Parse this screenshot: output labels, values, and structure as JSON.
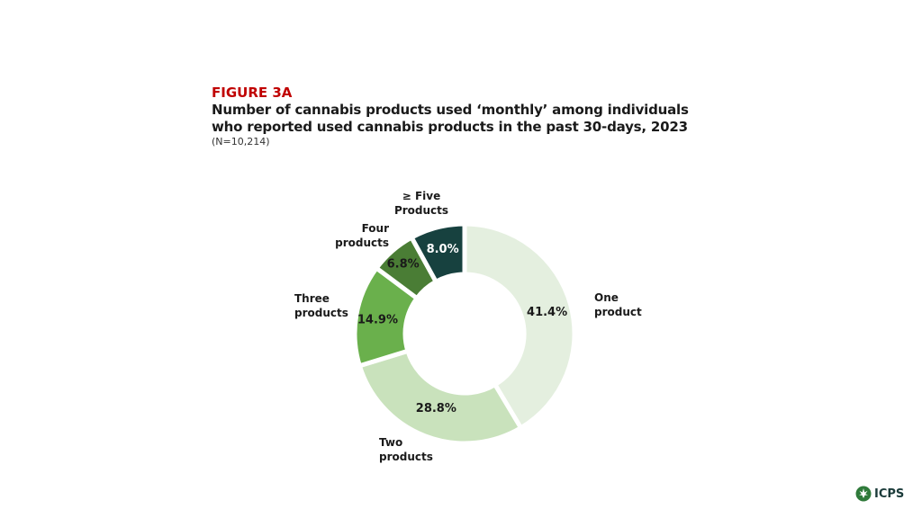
{
  "header": {
    "figure_label": "FIGURE 3A",
    "title_line1": "Number of cannabis products used ‘monthly’ among individuals",
    "title_line2": "who reported used cannabis products in the past 30-days, 2023",
    "subtitle": "(N=10,214)"
  },
  "logo": {
    "text": "ICPS",
    "icon": "cannabis-leaf-icon"
  },
  "chart_data": {
    "type": "donut",
    "title": "Number of cannabis products used ‘monthly’ among individuals who reported used cannabis products in the past 30-days, 2023",
    "unit": "%",
    "slices": [
      {
        "label_lines": [
          "One",
          "product"
        ],
        "value": 41.4,
        "value_label": "41.4%",
        "color": "#e4efdf",
        "text_color": "#1a1a1a"
      },
      {
        "label_lines": [
          "Two",
          "products"
        ],
        "value": 28.8,
        "value_label": "28.8%",
        "color": "#c9e2bc",
        "text_color": "#1a1a1a"
      },
      {
        "label_lines": [
          "Three",
          "products"
        ],
        "value": 14.9,
        "value_label": "14.9%",
        "color": "#6ab04c",
        "text_color": "#1a1a1a"
      },
      {
        "label_lines": [
          "Four",
          "products"
        ],
        "value": 6.8,
        "value_label": "6.8%",
        "color": "#4a7d35",
        "text_color": "#1a1a1a"
      },
      {
        "label_lines": [
          "≥ Five",
          "Products"
        ],
        "value": 8.0,
        "value_label": "8.0%",
        "color": "#17413f",
        "text_color": "#ffffff"
      }
    ]
  }
}
